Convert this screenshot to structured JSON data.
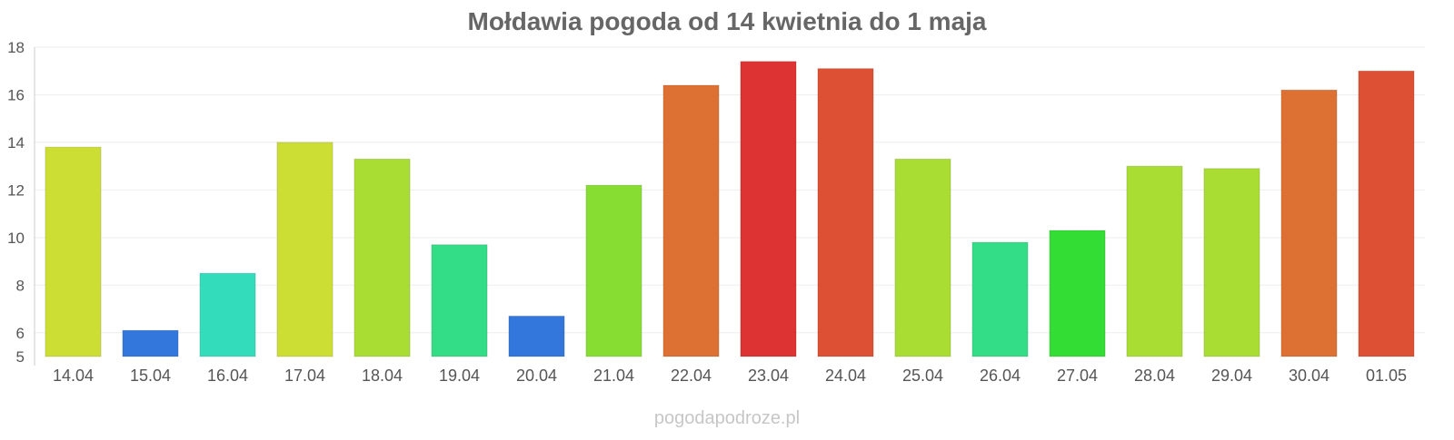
{
  "chart_data": {
    "type": "bar",
    "title": "Mołdawia pogoda od 14 kwietnia do 1 maja",
    "xlabel": "",
    "ylabel": "",
    "ylim": [
      5,
      18
    ],
    "yticks": [
      5,
      6,
      8,
      10,
      12,
      14,
      16,
      18
    ],
    "grid": true,
    "categories": [
      "14.04",
      "15.04",
      "16.04",
      "17.04",
      "18.04",
      "19.04",
      "20.04",
      "21.04",
      "22.04",
      "23.04",
      "24.04",
      "25.04",
      "26.04",
      "27.04",
      "28.04",
      "29.04",
      "30.04",
      "01.05"
    ],
    "values": [
      13.8,
      6.1,
      8.5,
      14.0,
      13.3,
      9.7,
      6.7,
      12.2,
      16.4,
      17.4,
      17.1,
      13.3,
      9.8,
      10.3,
      13.0,
      12.9,
      16.2,
      17.0
    ],
    "colors": [
      "#ccdd33",
      "#3377dd",
      "#33ddbb",
      "#ccdd33",
      "#aadd33",
      "#33dd88",
      "#3377dd",
      "#88dd33",
      "#dd7033",
      "#dd3333",
      "#dd5033",
      "#aadd33",
      "#33dd88",
      "#33dd33",
      "#aadd33",
      "#aadd33",
      "#dd7033",
      "#dd5033"
    ]
  },
  "watermark": "pogodapodroze.pl"
}
